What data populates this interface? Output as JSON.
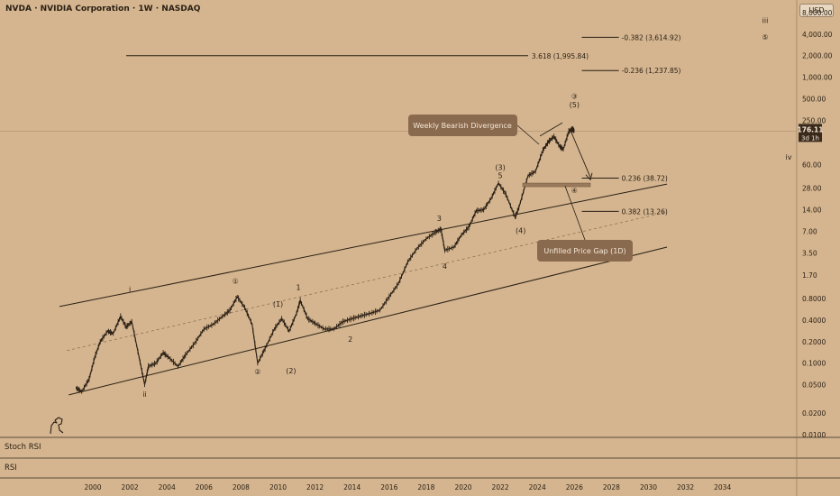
{
  "header": {
    "title": "NVDA · NVIDIA Corporation · 1W · NASDAQ",
    "currency": "USD"
  },
  "price_badge": {
    "price": "176.11",
    "countdown": "3d 1h"
  },
  "panes": {
    "stoch_rsi": "Stoch RSI",
    "rsi": "RSI"
  },
  "colors": {
    "background": "#d4b58f",
    "line": "#2a1f14",
    "callout_fill": "#8a6a4e",
    "callout_text": "#f3e7d6",
    "gap_fill": "#9a7a5c"
  },
  "chart_data": {
    "type": "line",
    "y_scale": "log",
    "ylim": [
      0.01,
      12000
    ],
    "xlim": [
      1999.0,
      2036.0
    ],
    "y_ticks": [
      "8,000.00",
      "4,000.00",
      "2,000.00",
      "1,000.00",
      "500.00",
      "250.00",
      "60.00",
      "28.00",
      "14.00",
      "7.00",
      "3.50",
      "1.70",
      "0.8000",
      "0.4000",
      "0.2000",
      "0.1000",
      "0.0500",
      "0.0200",
      "0.0100"
    ],
    "y_tick_values": [
      8000,
      4000,
      2000,
      1000,
      500,
      250,
      60,
      28,
      14,
      7,
      3.5,
      1.7,
      0.8,
      0.4,
      0.2,
      0.1,
      0.05,
      0.02,
      0.01
    ],
    "x_ticks": [
      "2000",
      "2002",
      "2004",
      "2006",
      "2008",
      "2010",
      "2012",
      "2014",
      "2016",
      "2018",
      "2020",
      "2022",
      "2024",
      "2026",
      "2028",
      "2030",
      "2032",
      "2034"
    ],
    "x_tick_values": [
      2000,
      2002,
      2004,
      2006,
      2008,
      2010,
      2012,
      2014,
      2016,
      2018,
      2020,
      2022,
      2024,
      2026,
      2028,
      2030,
      2032,
      2034
    ],
    "price_series": [
      [
        1999.1,
        0.045
      ],
      [
        1999.4,
        0.04
      ],
      [
        1999.8,
        0.06
      ],
      [
        2000.1,
        0.12
      ],
      [
        2000.4,
        0.2
      ],
      [
        2000.8,
        0.28
      ],
      [
        2001.1,
        0.26
      ],
      [
        2001.5,
        0.45
      ],
      [
        2001.8,
        0.32
      ],
      [
        2002.1,
        0.38
      ],
      [
        2002.5,
        0.12
      ],
      [
        2002.8,
        0.05
      ],
      [
        2003.0,
        0.09
      ],
      [
        2003.4,
        0.1
      ],
      [
        2003.8,
        0.14
      ],
      [
        2004.1,
        0.12
      ],
      [
        2004.6,
        0.09
      ],
      [
        2005.0,
        0.13
      ],
      [
        2005.5,
        0.19
      ],
      [
        2006.0,
        0.3
      ],
      [
        2006.5,
        0.35
      ],
      [
        2007.0,
        0.45
      ],
      [
        2007.4,
        0.55
      ],
      [
        2007.8,
        0.85
      ],
      [
        2008.2,
        0.6
      ],
      [
        2008.6,
        0.35
      ],
      [
        2008.9,
        0.1
      ],
      [
        2009.3,
        0.16
      ],
      [
        2009.8,
        0.3
      ],
      [
        2010.2,
        0.42
      ],
      [
        2010.6,
        0.28
      ],
      [
        2011.0,
        0.5
      ],
      [
        2011.2,
        0.75
      ],
      [
        2011.6,
        0.42
      ],
      [
        2012.0,
        0.36
      ],
      [
        2012.5,
        0.3
      ],
      [
        2013.0,
        0.3
      ],
      [
        2013.5,
        0.38
      ],
      [
        2014.0,
        0.42
      ],
      [
        2014.5,
        0.46
      ],
      [
        2015.0,
        0.5
      ],
      [
        2015.5,
        0.55
      ],
      [
        2016.0,
        0.85
      ],
      [
        2016.5,
        1.3
      ],
      [
        2017.0,
        2.6
      ],
      [
        2017.5,
        4.0
      ],
      [
        2018.0,
        5.5
      ],
      [
        2018.5,
        6.8
      ],
      [
        2018.8,
        7.5
      ],
      [
        2019.0,
        3.8
      ],
      [
        2019.5,
        4.2
      ],
      [
        2019.9,
        6.2
      ],
      [
        2020.3,
        8.0
      ],
      [
        2020.7,
        13.5
      ],
      [
        2021.1,
        14.0
      ],
      [
        2021.5,
        20.0
      ],
      [
        2021.9,
        33.0
      ],
      [
        2022.3,
        23.0
      ],
      [
        2022.8,
        11.0
      ],
      [
        2023.0,
        15.0
      ],
      [
        2023.5,
        42.0
      ],
      [
        2023.9,
        48.0
      ],
      [
        2024.3,
        95.0
      ],
      [
        2024.6,
        125.0
      ],
      [
        2024.9,
        148.0
      ],
      [
        2025.2,
        108.0
      ],
      [
        2025.4,
        98.0
      ],
      [
        2025.7,
        175.0
      ],
      [
        2025.9,
        188.0
      ],
      [
        2026.0,
        176.11
      ]
    ],
    "channel_lines": [
      {
        "name": "upper",
        "points": [
          [
            1998.2,
            0.62
          ],
          [
            2031.0,
            32.0
          ]
        ]
      },
      {
        "name": "lower",
        "points": [
          [
            1998.7,
            0.036
          ],
          [
            2031.0,
            4.2
          ]
        ]
      },
      {
        "name": "mid",
        "points": [
          [
            1998.6,
            0.15
          ],
          [
            2031.0,
            13.0
          ]
        ]
      }
    ],
    "fib_levels": [
      {
        "label": "3.618 (1,995.84)",
        "value": 1995.84,
        "x_start": 2001.8,
        "x_end": 2023.5
      },
      {
        "label": "-0.382 (3,614.92)",
        "value": 3614.92,
        "x_start": 2026.4,
        "x_end": 2028.4
      },
      {
        "label": "-0.236 (1,237.85)",
        "value": 1237.85,
        "x_start": 2026.4,
        "x_end": 2028.4
      },
      {
        "label": "0.236 (38.72)",
        "value": 38.72,
        "x_start": 2026.4,
        "x_end": 2028.4
      },
      {
        "label": "0.382 (13.26)",
        "value": 13.26,
        "x_start": 2026.4,
        "x_end": 2028.4
      }
    ],
    "wave_labels": [
      {
        "text": "i",
        "x": 2002.0,
        "y": 1.0
      },
      {
        "text": "ii",
        "x": 2002.8,
        "y": 0.034
      },
      {
        "text": "①",
        "x": 2007.7,
        "y": 1.3
      },
      {
        "text": "②",
        "x": 2008.9,
        "y": 0.07
      },
      {
        "text": "(1)",
        "x": 2010.0,
        "y": 0.62
      },
      {
        "text": "(2)",
        "x": 2010.7,
        "y": 0.072
      },
      {
        "text": "1",
        "x": 2011.1,
        "y": 1.05
      },
      {
        "text": "2",
        "x": 2013.9,
        "y": 0.2
      },
      {
        "text": "3",
        "x": 2018.7,
        "y": 9.8
      },
      {
        "text": "4",
        "x": 2019.0,
        "y": 2.1
      },
      {
        "text": "(3)",
        "x": 2022.0,
        "y": 50
      },
      {
        "text": "5",
        "x": 2022.0,
        "y": 39
      },
      {
        "text": "(4)",
        "x": 2023.1,
        "y": 6.6
      },
      {
        "text": "③",
        "x": 2026.0,
        "y": 500
      },
      {
        "text": "(5)",
        "x": 2026.0,
        "y": 380
      },
      {
        "text": "④",
        "x": 2026.0,
        "y": 24
      },
      {
        "text": "iii",
        "x": 2036.3,
        "y": 5700
      },
      {
        "text": "⑤",
        "x": 2036.3,
        "y": 3350
      },
      {
        "text": "iv",
        "x": 2038.5,
        "y": 70
      }
    ],
    "callouts": [
      {
        "text": "Weekly Bearish Divergence"
      },
      {
        "text": "Unfilled Price Gap (1D)"
      }
    ]
  }
}
